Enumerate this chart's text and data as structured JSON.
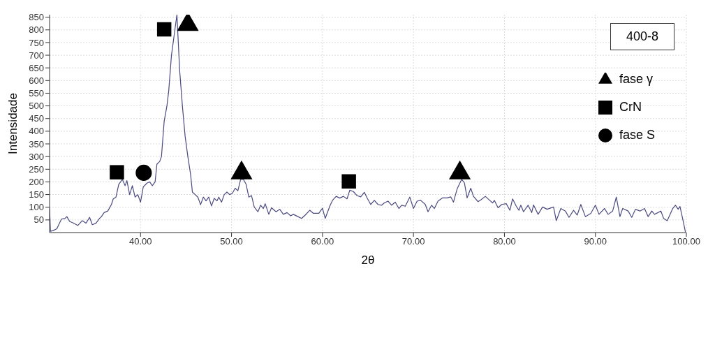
{
  "chart_data": {
    "type": "line",
    "xlabel": "2θ",
    "ylabel": "Intensidade",
    "annotations": [
      "400-8"
    ],
    "xlim": [
      30,
      100
    ],
    "xticks": [
      {
        "value": 40,
        "label": "40.00"
      },
      {
        "value": 50,
        "label": "50.00"
      },
      {
        "value": 60,
        "label": "60.00"
      },
      {
        "value": 70,
        "label": "70.00"
      },
      {
        "value": 80,
        "label": "80.00"
      },
      {
        "value": 90,
        "label": "90.00"
      },
      {
        "value": 100,
        "label": "100.00"
      }
    ],
    "ylim": [
      0,
      860
    ],
    "yticks": [
      50,
      100,
      150,
      200,
      250,
      300,
      350,
      400,
      450,
      500,
      550,
      600,
      650,
      700,
      750,
      800,
      850
    ],
    "grid": true,
    "legend": "top right",
    "series": [
      {
        "color": "#4a4a80",
        "marker": "none",
        "x": [
          30,
          30.1,
          30.4,
          30.8,
          31.3,
          31.7,
          31.9,
          32.2,
          32.6,
          33.1,
          33.6,
          34.0,
          34.4,
          34.7,
          35.1,
          35.5,
          35.7,
          36.0,
          36.4,
          36.8,
          37.0,
          37.3,
          37.6,
          38.0,
          38.3,
          38.5,
          38.8,
          39.1,
          39.4,
          39.7,
          40.0,
          40.3,
          40.7,
          41.0,
          41.3,
          41.6,
          41.8,
          42.1,
          42.3,
          42.6,
          42.9,
          43.1,
          43.4,
          43.7,
          44.0,
          44.3,
          44.6,
          44.9,
          45.2,
          45.5,
          45.7,
          46.0,
          46.3,
          46.6,
          46.9,
          47.2,
          47.5,
          47.8,
          48.1,
          48.4,
          48.6,
          48.9,
          49.2,
          49.5,
          49.8,
          50.1,
          50.4,
          50.7,
          51.0,
          51.3,
          51.6,
          51.9,
          52.2,
          52.5,
          52.9,
          53.2,
          53.5,
          53.7,
          54.1,
          54.4,
          54.9,
          55.3,
          55.7,
          56.1,
          56.5,
          56.8,
          57.3,
          57.7,
          58.1,
          58.6,
          59.0,
          59.6,
          60.0,
          60.3,
          60.8,
          61.1,
          61.5,
          61.9,
          62.3,
          62.7,
          63.0,
          63.4,
          63.8,
          64.2,
          64.6,
          64.9,
          65.3,
          65.7,
          66.1,
          66.5,
          66.8,
          67.2,
          67.6,
          68.0,
          68.4,
          68.7,
          69.1,
          69.6,
          70.0,
          70.4,
          70.8,
          71.3,
          71.6,
          72.0,
          72.3,
          72.7,
          73.2,
          73.7,
          74.1,
          74.4,
          74.8,
          75.3,
          75.6,
          75.9,
          76.3,
          76.6,
          77.1,
          77.4,
          77.9,
          78.3,
          78.7,
          78.9,
          79.3,
          79.7,
          80.2,
          80.6,
          80.9,
          81.3,
          81.6,
          81.8,
          82.1,
          82.6,
          83.0,
          83.2,
          83.7,
          84.2,
          84.7,
          85.4,
          85.7,
          86.2,
          86.7,
          87.1,
          87.6,
          88.0,
          88.4,
          88.9,
          89.5,
          90.0,
          90.4,
          91.0,
          91.4,
          91.9,
          92.3,
          92.7,
          93.0,
          93.6,
          94.0,
          94.4,
          94.9,
          95.4,
          95.8,
          96.2,
          96.5,
          97.2,
          97.5,
          97.9,
          98.5,
          98.8,
          99.1,
          99.3,
          99.7,
          99.9
        ],
        "values": [
          95,
          5,
          8,
          15,
          53,
          56,
          63,
          44,
          38,
          28,
          47,
          37,
          60,
          31,
          37,
          56,
          63,
          79,
          85,
          111,
          133,
          140,
          190,
          210,
          185,
          205,
          150,
          185,
          140,
          150,
          120,
          180,
          195,
          200,
          185,
          200,
          270,
          280,
          300,
          440,
          500,
          560,
          700,
          780,
          860,
          640,
          500,
          380,
          300,
          230,
          160,
          150,
          140,
          110,
          140,
          125,
          140,
          105,
          135,
          125,
          140,
          120,
          150,
          160,
          150,
          155,
          175,
          165,
          210,
          210,
          191,
          140,
          146,
          101,
          82,
          108,
          95,
          114,
          72,
          98,
          82,
          92,
          72,
          79,
          66,
          72,
          63,
          56,
          69,
          88,
          76,
          76,
          96,
          56,
          104,
          127,
          143,
          136,
          143,
          133,
          167,
          162,
          146,
          141,
          159,
          137,
          111,
          127,
          111,
          108,
          117,
          124,
          108,
          120,
          95,
          108,
          104,
          140,
          95,
          124,
          127,
          111,
          82,
          108,
          95,
          124,
          137,
          137,
          141,
          120,
          172,
          210,
          197,
          137,
          175,
          143,
          122,
          129,
          143,
          130,
          117,
          127,
          98,
          111,
          114,
          88,
          133,
          104,
          88,
          108,
          82,
          108,
          79,
          109,
          72,
          101,
          92,
          101,
          47,
          95,
          85,
          60,
          88,
          69,
          111,
          63,
          76,
          108,
          72,
          95,
          72,
          85,
          140,
          63,
          95,
          85,
          60,
          92,
          85,
          95,
          63,
          85,
          72,
          85,
          56,
          47,
          95,
          108,
          92,
          103,
          37,
          2
        ]
      },
      {
        "type": "scatter",
        "name": "fase γ",
        "color": "#000000",
        "marker": "triangle",
        "x": [
          45.2,
          51.1,
          75.1
        ],
        "values": [
          821,
          235,
          235
        ]
      },
      {
        "type": "scatter",
        "name": "CrN",
        "color": "#000000",
        "marker": "square",
        "x": [
          42.6,
          37.4,
          62.9
        ],
        "values": [
          802,
          238,
          202
        ]
      },
      {
        "type": "scatter",
        "name": "fase S",
        "color": "#000000",
        "marker": "circle",
        "x": [
          40.35
        ],
        "values": [
          236
        ]
      }
    ]
  }
}
